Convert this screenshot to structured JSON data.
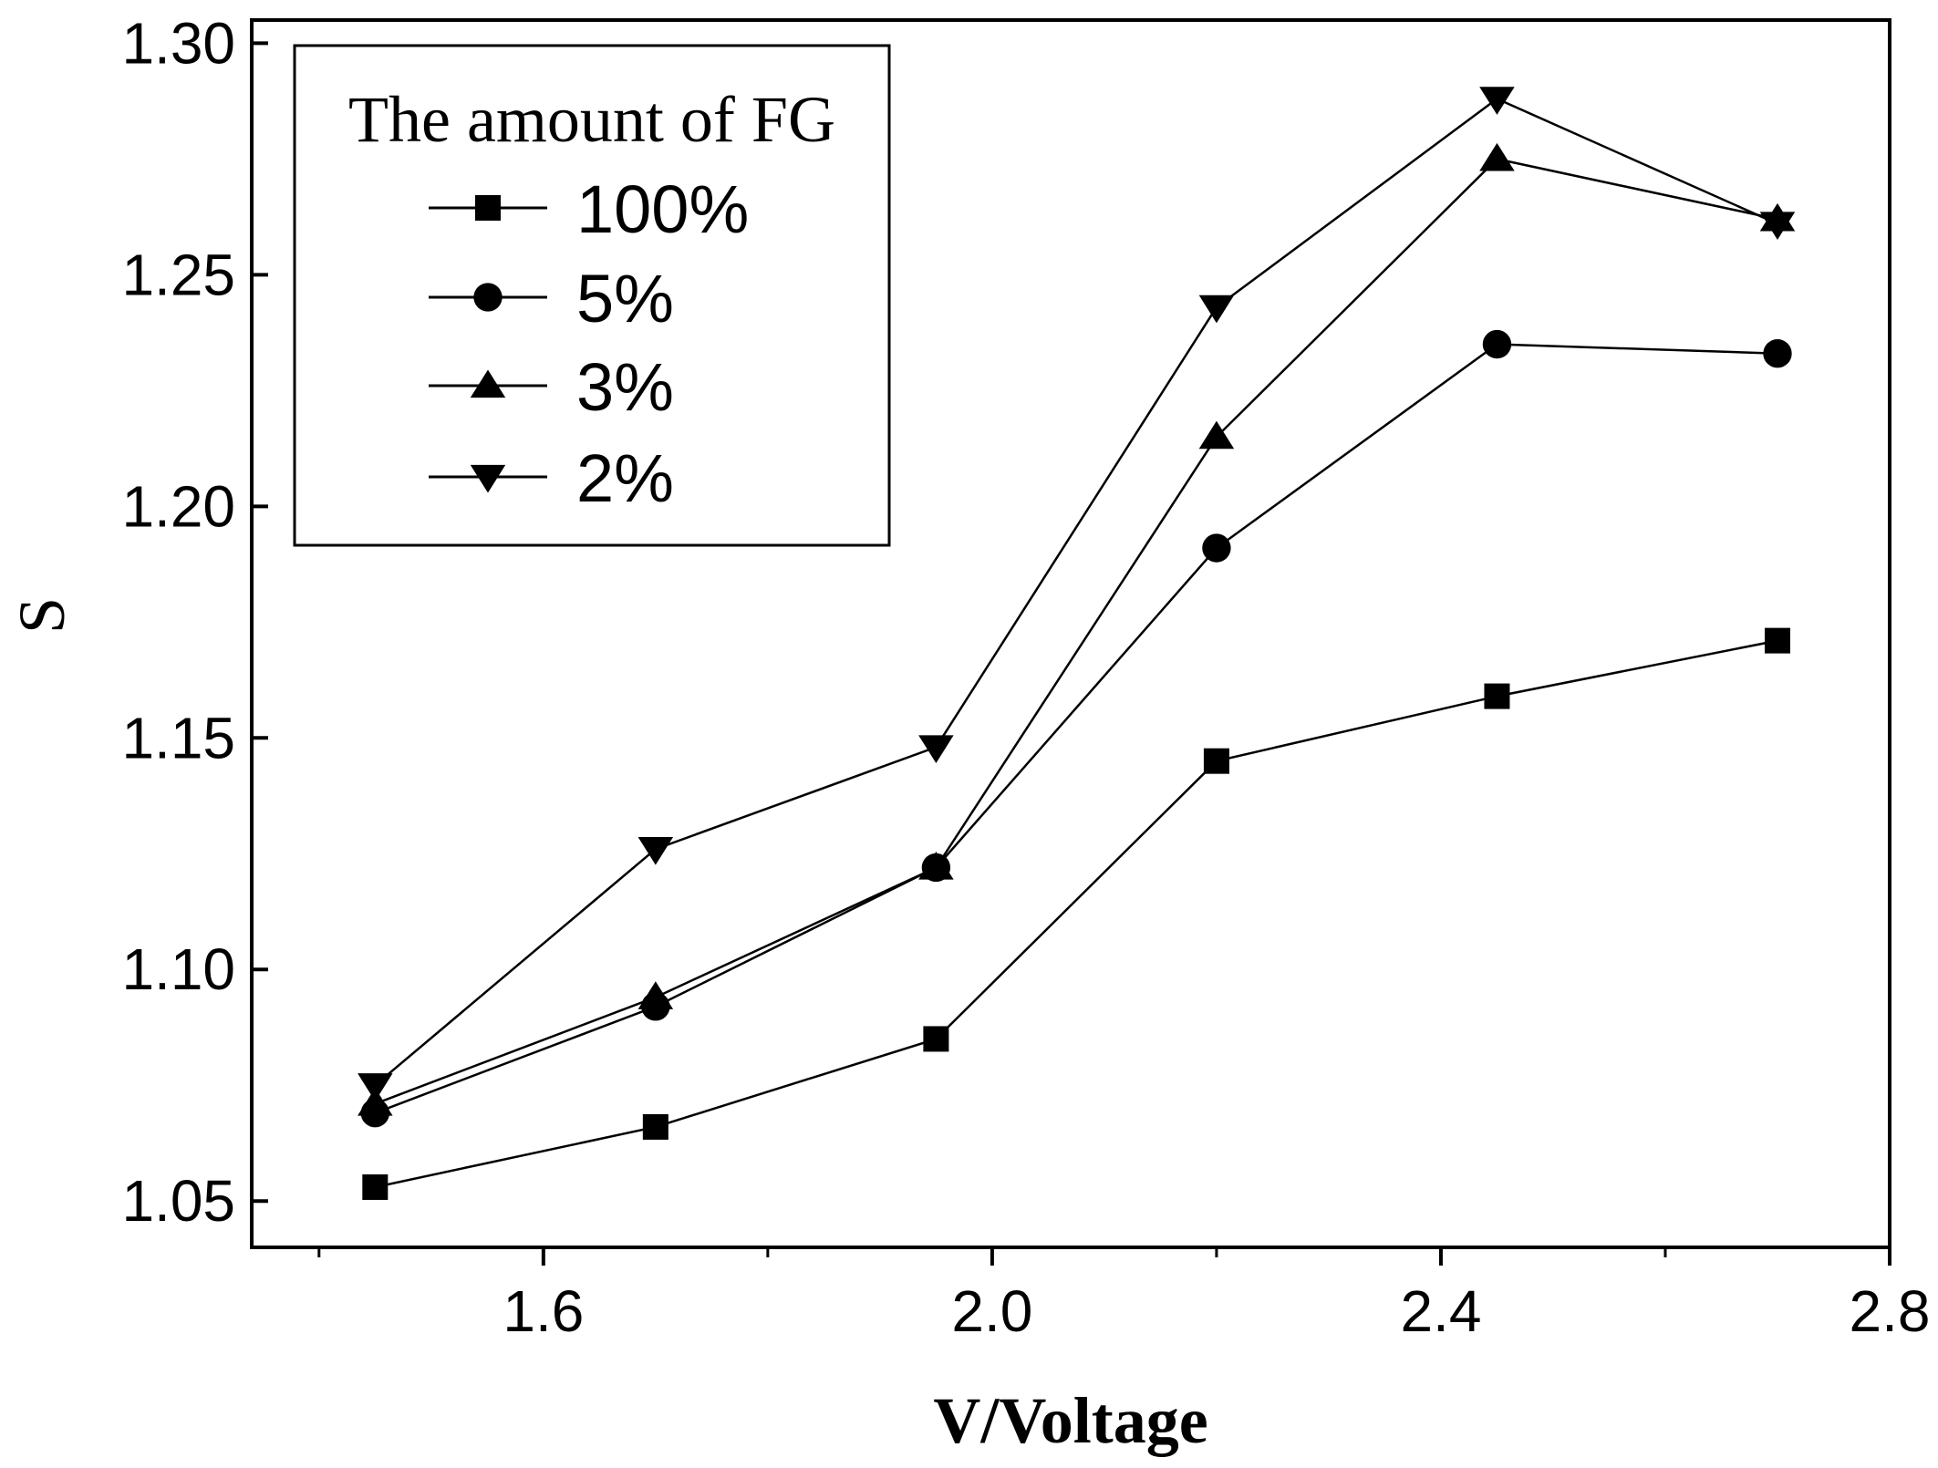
{
  "chart_data": {
    "type": "line",
    "title": "",
    "xlabel": "V/Voltage",
    "ylabel": "S",
    "xlim": [
      1.34,
      2.8
    ],
    "ylim": [
      1.04,
      1.305
    ],
    "x_ticks": [
      1.6,
      2.0,
      2.4,
      2.8
    ],
    "x_tick_labels": [
      "1.6",
      "2.0",
      "2.4",
      "2.8"
    ],
    "x_minor_ticks": [
      1.4,
      1.8,
      2.2,
      2.6
    ],
    "y_ticks": [
      1.05,
      1.1,
      1.15,
      1.2,
      1.25,
      1.3
    ],
    "y_tick_labels": [
      "1.05",
      "1.10",
      "1.15",
      "1.20",
      "1.25",
      "1.30"
    ],
    "legend": {
      "title": "The amount of FG",
      "position": "top-left"
    },
    "grid": false,
    "x": [
      1.45,
      1.7,
      1.95,
      2.2,
      2.45,
      2.7
    ],
    "series": [
      {
        "name": "100%",
        "marker": "square",
        "values": [
          1.053,
          1.066,
          1.085,
          1.145,
          1.159,
          1.171
        ]
      },
      {
        "name": "5%",
        "marker": "circle",
        "values": [
          1.069,
          1.092,
          1.122,
          1.191,
          1.235,
          1.233
        ]
      },
      {
        "name": "3%",
        "marker": "triangle-up",
        "values": [
          1.071,
          1.094,
          1.122,
          1.215,
          1.275,
          1.262
        ]
      },
      {
        "name": "2%",
        "marker": "triangle-down",
        "values": [
          1.075,
          1.126,
          1.148,
          1.243,
          1.288,
          1.261
        ]
      }
    ]
  }
}
